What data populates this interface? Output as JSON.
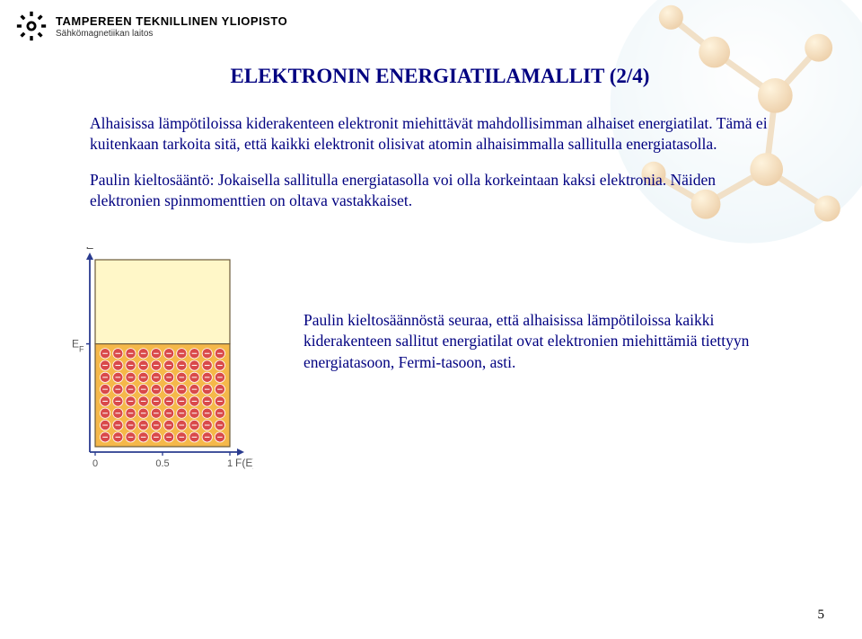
{
  "header": {
    "university": "TAMPEREEN TEKNILLINEN YLIOPISTO",
    "department": "Sähkömagnetiikan laitos"
  },
  "slide": {
    "title": "ELEKTRONIN ENERGIATILAMALLIT (2/4)",
    "para1": "Alhaisissa lämpötiloissa kiderakenteen elektronit miehittävät mahdollisimman alhaiset energiatilat. Tämä ei kuitenkaan tarkoita sitä, että kaikki elektronit olisivat atomin alhaisimmalla sallitulla energiatasolla.",
    "para2": "Paulin kieltosääntö: Jokaisella sallitulla energiatasolla voi olla korkeintaan kaksi elektronia. Näiden elektronien spinmomenttien on oltava vastakkaiset.",
    "note": "Paulin kieltosäännöstä seuraa, että alhaisissa lämpötiloissa kaikki kiderakenteen sallitut energiatilat ovat elektronien miehittämiä tiettyyn energiatasoon, Fermi-tasoon, asti."
  },
  "diagram": {
    "axes": {
      "y_label": "E",
      "ef_label": "E_F",
      "x_label": "F(E)",
      "x_ticks": [
        "0",
        "0.5",
        "1"
      ]
    },
    "colors": {
      "axis": "#2a3b8f",
      "box_border": "#6b5a3a",
      "upper_fill": "#fff7c8",
      "lower_fill": "#f5b84a",
      "electron_fill": "#d94a4a",
      "electron_stroke": "#ffffff"
    },
    "grid": {
      "cols": 10,
      "rows": 8
    }
  },
  "page_number": "5",
  "molecule_colors": {
    "bg_gradient_inner": "#ffffff",
    "bg_gradient_outer": "#cfe6f0",
    "atom": "#f0a028",
    "bond": "#d8a860"
  }
}
